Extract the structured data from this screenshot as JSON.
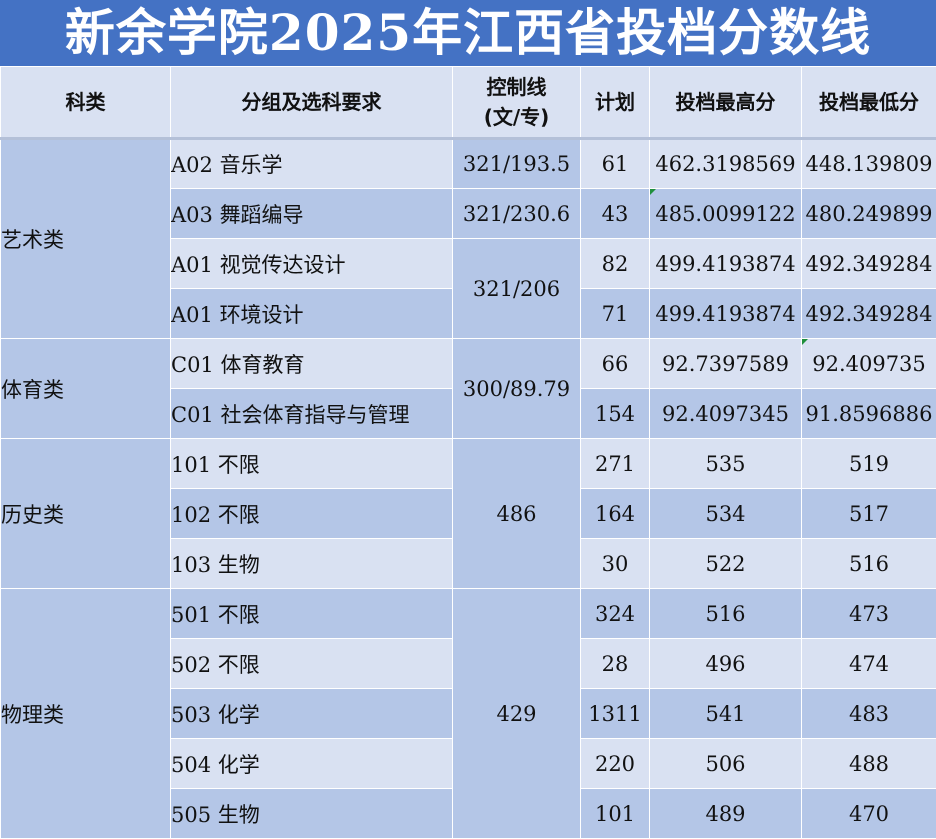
{
  "title": "新余学院2025年江西省投档分数线",
  "headers": {
    "category": "科类",
    "group": "分组及选科要求",
    "control_line_1": "控制线",
    "control_line_2": "(文/专)",
    "plan": "计划",
    "max_score": "投档最高分",
    "min_score": "投档最低分"
  },
  "sections": [
    {
      "category": "艺术类",
      "rows": [
        {
          "group": "A02 音乐学",
          "control": "321/193.5",
          "plan": "61",
          "max": "462.3198569",
          "min": "448.139809"
        },
        {
          "group": "A03 舞蹈编导",
          "control": "321/230.6",
          "plan": "43",
          "max": "485.0099122",
          "min": "480.249899"
        },
        {
          "group": "A01 视觉传达设计",
          "control": "321/206",
          "plan": "82",
          "max": "499.4193874",
          "min": "492.349284"
        },
        {
          "group": "A01 环境设计",
          "plan": "71",
          "max": "499.4193874",
          "min": "492.349284"
        }
      ]
    },
    {
      "category": "体育类",
      "control": "300/89.79",
      "rows": [
        {
          "group": "C01 体育教育",
          "plan": "66",
          "max": "92.7397589",
          "min": "92.409735"
        },
        {
          "group": "C01 社会体育指导与管理",
          "plan": "154",
          "max": "92.4097345",
          "min": "91.8596886"
        }
      ]
    },
    {
      "category": "历史类",
      "control": "486",
      "rows": [
        {
          "group": "101 不限",
          "plan": "271",
          "max": "535",
          "min": "519"
        },
        {
          "group": "102 不限",
          "plan": "164",
          "max": "534",
          "min": "517"
        },
        {
          "group": "103 生物",
          "plan": "30",
          "max": "522",
          "min": "516"
        }
      ]
    },
    {
      "category": "物理类",
      "control": "429",
      "rows": [
        {
          "group": "501 不限",
          "plan": "324",
          "max": "516",
          "min": "473"
        },
        {
          "group": "502 不限",
          "plan": "28",
          "max": "496",
          "min": "474"
        },
        {
          "group": "503 化学",
          "plan": "1311",
          "max": "541",
          "min": "483"
        },
        {
          "group": "504 化学",
          "plan": "220",
          "max": "506",
          "min": "488"
        },
        {
          "group": "505 生物",
          "plan": "101",
          "max": "489",
          "min": "470"
        }
      ]
    }
  ]
}
